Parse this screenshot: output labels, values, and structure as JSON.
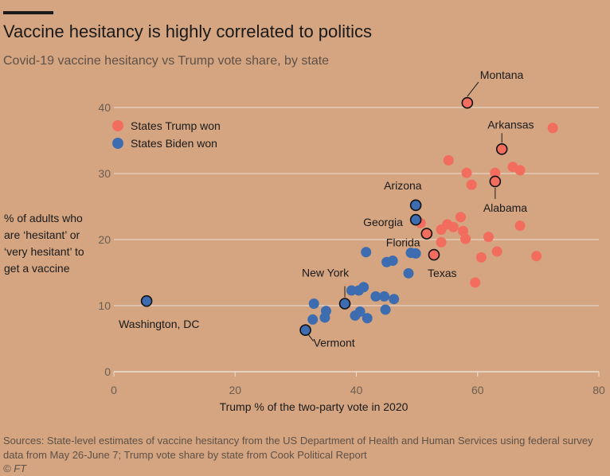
{
  "title": "Vaccine hesitancy is highly correlated to politics",
  "subtitle": "Covid-19 vaccine hesitancy vs Trump vote share, by state",
  "source": "Sources: State-level estimates of vaccine hesitancy from the US Department of Health and Human Services using federal survey data from May 26-June 7; Trump vote share by state from Cook Political Report",
  "credit": "© FT",
  "colors": {
    "trump": "#f26d5e",
    "biden": "#3d6db0",
    "background": "#d4a580",
    "grid": "#ede0d3"
  },
  "chart_data": {
    "type": "scatter",
    "title": "Vaccine hesitancy is highly correlated to politics",
    "subtitle": "Covid-19 vaccine hesitancy vs Trump vote share, by state",
    "xlabel": "Trump % of the two-party vote in 2020",
    "ylabel": "% of adults who are ‘hesitant’ or ‘very hesitant’ to get a vaccine",
    "xlim": [
      0,
      80
    ],
    "ylim": [
      0,
      40
    ],
    "x_ticks": [
      0,
      20,
      40,
      60,
      80
    ],
    "y_ticks": [
      0,
      10,
      20,
      30,
      40
    ],
    "grid": true,
    "legend_position": "top-left",
    "series": [
      {
        "name": "States Trump won",
        "color": "#f26d5e",
        "points": [
          [
            55.2,
            32.0
          ],
          [
            58.2,
            30.1
          ],
          [
            59.0,
            28.3
          ],
          [
            62.9,
            30.1
          ],
          [
            65.8,
            31.0
          ],
          [
            67.0,
            30.5
          ],
          [
            72.4,
            36.9
          ],
          [
            55.0,
            22.3
          ],
          [
            54.0,
            21.5
          ],
          [
            56.0,
            21.9
          ],
          [
            57.2,
            23.4
          ],
          [
            57.6,
            21.3
          ],
          [
            58.0,
            20.1
          ],
          [
            61.8,
            20.4
          ],
          [
            67.0,
            22.1
          ],
          [
            54.0,
            19.6
          ],
          [
            60.6,
            17.3
          ],
          [
            63.2,
            18.2
          ],
          [
            69.7,
            17.5
          ],
          [
            59.6,
            13.5
          ],
          [
            50.6,
            22.5
          ]
        ]
      },
      {
        "name": "States Biden won",
        "color": "#3d6db0",
        "points": [
          [
            41.6,
            18.1
          ],
          [
            45.0,
            16.6
          ],
          [
            46.0,
            16.8
          ],
          [
            49.0,
            18.0
          ],
          [
            49.8,
            17.9
          ],
          [
            48.6,
            14.9
          ],
          [
            39.2,
            12.3
          ],
          [
            40.4,
            12.3
          ],
          [
            41.2,
            12.8
          ],
          [
            43.2,
            11.4
          ],
          [
            44.6,
            11.4
          ],
          [
            46.2,
            11.0
          ],
          [
            44.8,
            9.4
          ],
          [
            40.6,
            9.1
          ],
          [
            39.8,
            8.5
          ],
          [
            41.8,
            8.1
          ],
          [
            33.0,
            10.3
          ],
          [
            35.0,
            9.2
          ],
          [
            34.8,
            8.2
          ],
          [
            32.8,
            7.9
          ]
        ]
      }
    ],
    "annotations": [
      {
        "label": "Montana",
        "x": 58.3,
        "y": 40.7,
        "party": "trump"
      },
      {
        "label": "Arkansas",
        "x": 64.0,
        "y": 33.7,
        "party": "trump"
      },
      {
        "label": "Alabama",
        "x": 62.9,
        "y": 28.8,
        "party": "trump"
      },
      {
        "label": "Arizona",
        "x": 49.8,
        "y": 25.2,
        "party": "biden"
      },
      {
        "label": "Georgia",
        "x": 49.8,
        "y": 23.0,
        "party": "biden"
      },
      {
        "label": "Florida",
        "x": 51.6,
        "y": 20.9,
        "party": "trump"
      },
      {
        "label": "Texas",
        "x": 52.8,
        "y": 17.7,
        "party": "trump"
      },
      {
        "label": "New York",
        "x": 38.1,
        "y": 10.3,
        "party": "biden"
      },
      {
        "label": "Washington, DC",
        "x": 5.4,
        "y": 10.7,
        "party": "biden"
      },
      {
        "label": "Vermont",
        "x": 31.6,
        "y": 6.3,
        "party": "biden"
      }
    ]
  }
}
